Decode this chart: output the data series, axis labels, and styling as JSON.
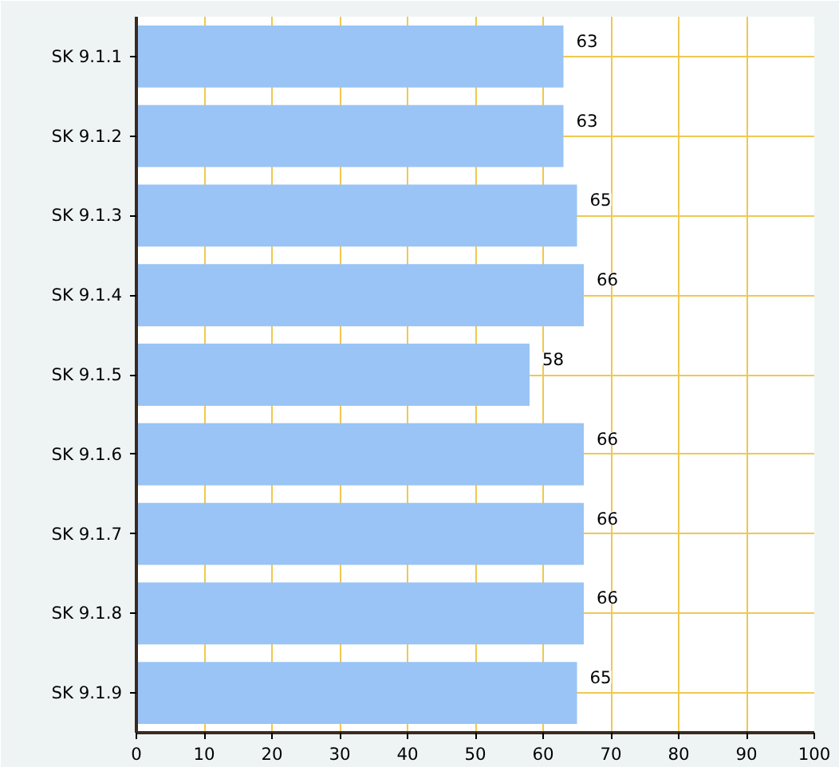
{
  "chart_data": {
    "type": "bar",
    "orientation": "horizontal",
    "categories": [
      "SK 9.1.1",
      "SK 9.1.2",
      "SK 9.1.3",
      "SK 9.1.4",
      "SK 9.1.5",
      "SK 9.1.6",
      "SK 9.1.7",
      "SK 9.1.8",
      "SK 9.1.9"
    ],
    "values": [
      63,
      63,
      65,
      66,
      58,
      66,
      66,
      66,
      65
    ],
    "color": "#99c4f5",
    "xlim": [
      0,
      100
    ],
    "xticks": [
      0,
      10,
      20,
      30,
      40,
      50,
      60,
      70,
      80,
      90,
      100
    ],
    "grid": true,
    "data_labels": true
  }
}
